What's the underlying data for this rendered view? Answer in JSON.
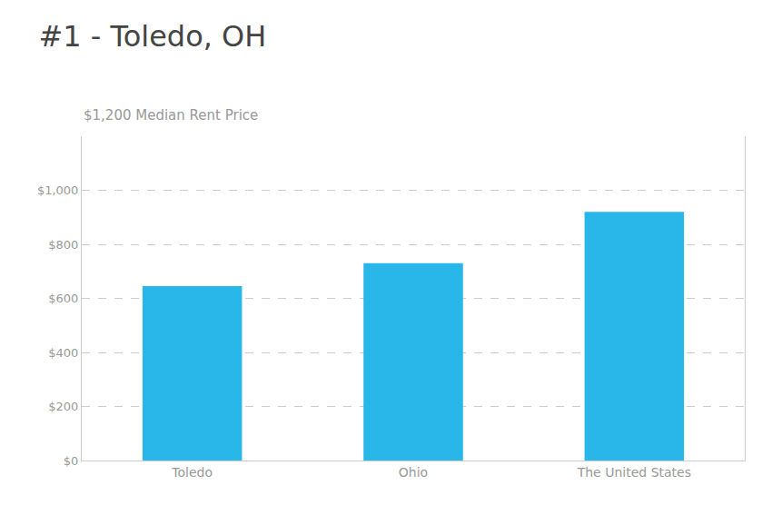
{
  "chart_data": {
    "type": "bar",
    "title": "#1 - Toledo, OH",
    "subtitle": "$1,200 Median Rent Price",
    "categories": [
      "Toledo",
      "Ohio",
      "The United States"
    ],
    "values": [
      645,
      730,
      920
    ],
    "color": "#29b6e8",
    "ylim": [
      0,
      1200
    ],
    "yticks": [
      {
        "value": 0,
        "label": "$0"
      },
      {
        "value": 200,
        "label": "$200"
      },
      {
        "value": 400,
        "label": "$400"
      },
      {
        "value": 600,
        "label": "$600"
      },
      {
        "value": 800,
        "label": "$800"
      },
      {
        "value": 1000,
        "label": "$1,000"
      }
    ],
    "grid": true
  }
}
